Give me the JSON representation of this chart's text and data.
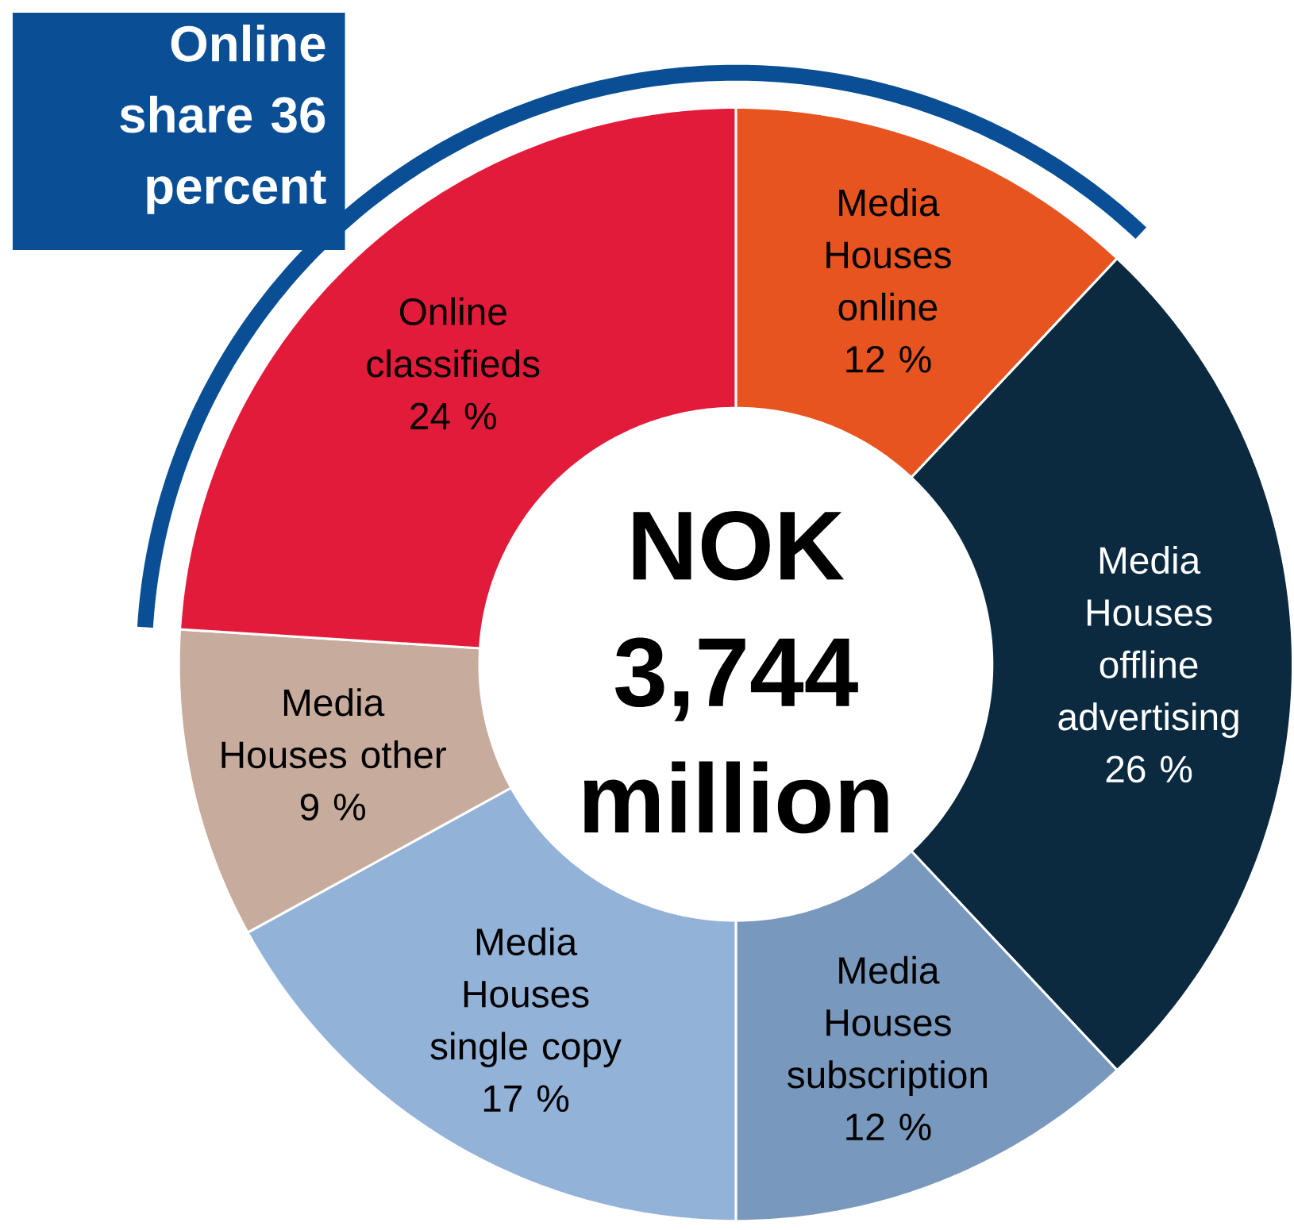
{
  "chart_data": {
    "type": "donut",
    "title": "Online share 36 percent",
    "categories": [
      "Media Houses online",
      "Media Houses offline advertising",
      "Media Houses subscription",
      "Media Houses single copy",
      "Media Houses other",
      "Online classifieds"
    ],
    "values": [
      12,
      26,
      12,
      17,
      9,
      24
    ],
    "value_labels": [
      "12 %",
      "26 %",
      "12 %",
      "17 %",
      "9 %",
      "24 %"
    ],
    "colors": [
      "#e85420",
      "#0b2a40",
      "#7899bd",
      "#93b2d8",
      "#c7ab9c",
      "#e31b3a"
    ],
    "annotations": [
      "NOK 3,744 million"
    ]
  }
}
